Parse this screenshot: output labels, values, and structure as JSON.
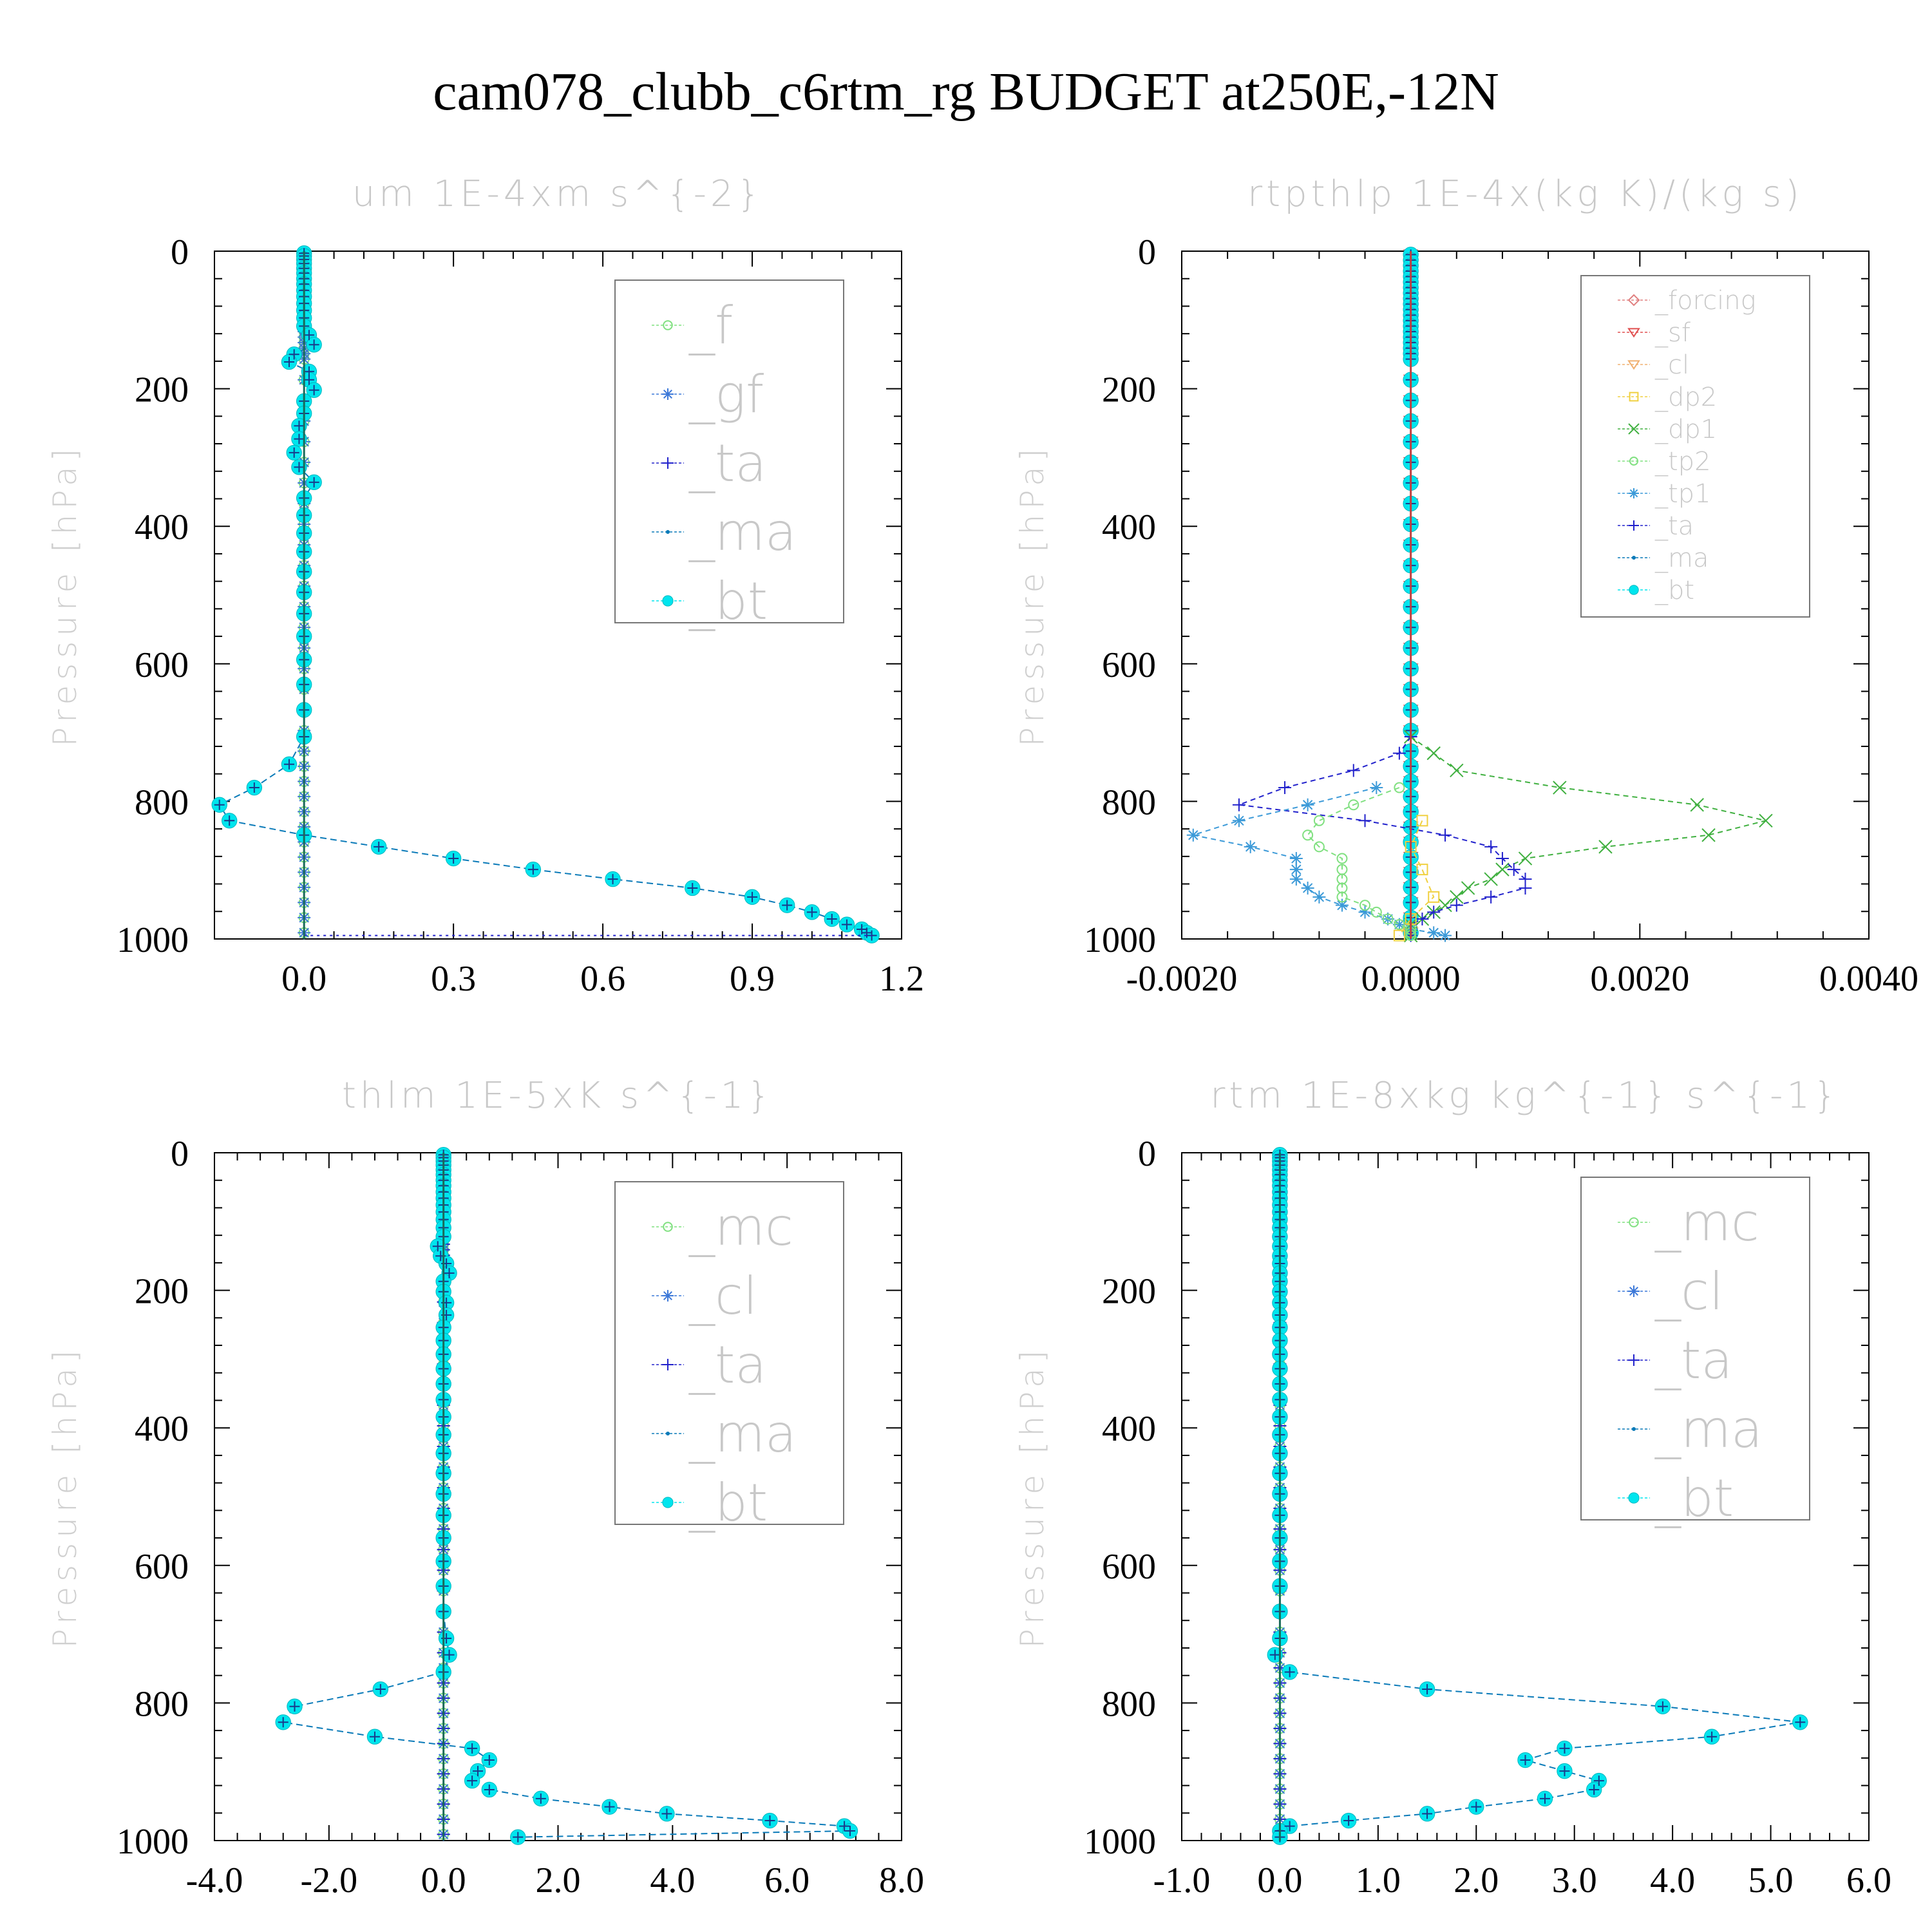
{
  "title": "cam078_clubb_c6rtm_rg  BUDGET at250E,-12N",
  "colors": {
    "_f": "#7fe07f",
    "_gf": "#3c78d8",
    "_ta": "#2222cc",
    "_ma": "#0a7ab8",
    "_bt": "#00e5ee",
    "_mc": "#7fe07f",
    "_cl": "#3c78d8",
    "_forcing": "#e08080",
    "_sf": "#e05050",
    "_cl_r": "#f0b070",
    "_dp2": "#f0d040",
    "_dp1": "#40b040",
    "_tp2": "#80e080",
    "_tp1": "#3c9ad8"
  },
  "chart_data": [
    {
      "type": "line",
      "title": "um  1E-4xm s^{-2}",
      "ylabel": "Pressure [hPa]",
      "xlim": [
        -0.18,
        1.2
      ],
      "ylim": [
        1000,
        0
      ],
      "xticks": [
        "0.0",
        "0.3",
        "0.6",
        "0.9",
        "1.2"
      ],
      "xtick_values": [
        0.0,
        0.3,
        0.6,
        0.9,
        1.2
      ],
      "yticks": [
        "0",
        "200",
        "400",
        "600",
        "800",
        "1000"
      ],
      "ytick_values": [
        0,
        200,
        400,
        600,
        800,
        1000
      ],
      "legend": {
        "position": "top-right",
        "entries": [
          "_f",
          "_gf",
          "_ta",
          "_ma",
          "_bt"
        ]
      },
      "series": [
        {
          "name": "_bt",
          "p": [
            3,
            7,
            12,
            18,
            25,
            32,
            40,
            48,
            57,
            66,
            76,
            86,
            97,
            109,
            122,
            136,
            150,
            161,
            175,
            187,
            202,
            218,
            236,
            254,
            273,
            293,
            314,
            336,
            359,
            384,
            410,
            437,
            466,
            496,
            527,
            560,
            594,
            630,
            667,
            706,
            746,
            780,
            805,
            828,
            849,
            866,
            883,
            899,
            913,
            926,
            939,
            951,
            961,
            971,
            979,
            986,
            991,
            995
          ],
          "x": [
            0,
            0,
            0,
            0,
            0,
            0,
            0,
            0,
            0,
            0,
            0,
            0,
            0,
            0,
            0.01,
            0.02,
            -0.02,
            -0.03,
            0.01,
            0.01,
            0.02,
            0.0,
            0.0,
            -0.01,
            -0.01,
            -0.02,
            -0.01,
            0.02,
            0.0,
            0.0,
            0.0,
            0.0,
            0.0,
            0.0,
            0.0,
            0.0,
            0.0,
            0.0,
            0.0,
            0.0,
            -0.03,
            -0.1,
            -0.17,
            -0.15,
            0.0,
            0.15,
            0.3,
            0.46,
            0.62,
            0.78,
            0.9,
            0.97,
            1.02,
            1.06,
            1.09,
            1.12,
            1.13,
            1.14
          ]
        },
        {
          "name": "_f",
          "const_x": 0.0
        },
        {
          "name": "_gf",
          "const_x": 0.0
        },
        {
          "name": "_ta",
          "tail": {
            "p": [
              995,
              995
            ],
            "x": [
              0.0,
              1.14
            ]
          }
        }
      ]
    },
    {
      "type": "line",
      "title": "rtpthlp  1E-4x(kg K)/(kg s)",
      "ylabel": "Pressure [hPa]",
      "xlim": [
        -0.002,
        0.004
      ],
      "ylim": [
        1000,
        0
      ],
      "xticks": [
        "-0.0020",
        "0.0000",
        "0.0020",
        "0.0040"
      ],
      "xtick_values": [
        -0.002,
        0.0,
        0.002,
        0.004
      ],
      "yticks": [
        "0",
        "200",
        "400",
        "600",
        "800",
        "1000"
      ],
      "ytick_values": [
        0,
        200,
        400,
        600,
        800,
        1000
      ],
      "legend": {
        "position": "top-right",
        "entries": [
          "_forcing",
          "_sf",
          "_cl",
          "_dp2",
          "_dp1",
          "_tp2",
          "_tp1",
          "_ta",
          "_ma",
          "_bt"
        ]
      },
      "series": [
        {
          "name": "_dp1",
          "p": [
            706,
            730,
            755,
            780,
            805,
            828,
            849,
            866,
            883,
            899,
            913,
            926,
            939,
            951,
            961,
            971,
            979,
            986,
            991,
            995
          ],
          "x": [
            0.0,
            0.0002,
            0.0004,
            0.0013,
            0.0025,
            0.0031,
            0.0026,
            0.0017,
            0.001,
            0.0008,
            0.0007,
            0.0005,
            0.0004,
            0.0003,
            0.0002,
            0.0001,
            0.0,
            0.0,
            0.0,
            0.0
          ]
        },
        {
          "name": "_ta",
          "p": [
            706,
            730,
            755,
            780,
            805,
            828,
            849,
            866,
            883,
            899,
            913,
            926,
            939,
            951,
            961,
            971,
            979,
            986,
            991,
            995
          ],
          "x": [
            0.0,
            -0.0001,
            -0.0005,
            -0.0011,
            -0.0015,
            -0.0004,
            0.0003,
            0.0007,
            0.0008,
            0.0009,
            0.001,
            0.001,
            0.0007,
            0.0004,
            0.0002,
            0.0001,
            0.0,
            0.0,
            0.0,
            0.0
          ]
        },
        {
          "name": "_tp1",
          "p": [
            780,
            805,
            828,
            849,
            866,
            883,
            899,
            913,
            926,
            939,
            951,
            961,
            971,
            979,
            986,
            991,
            995
          ],
          "x": [
            -0.0003,
            -0.0009,
            -0.0015,
            -0.0019,
            -0.0014,
            -0.001,
            -0.001,
            -0.001,
            -0.0009,
            -0.0008,
            -0.0006,
            -0.0004,
            -0.0002,
            -0.0001,
            0.0,
            0.0002,
            0.0003
          ]
        },
        {
          "name": "_tp2",
          "p": [
            780,
            805,
            828,
            849,
            866,
            883,
            899,
            913,
            926,
            939,
            951,
            961,
            971,
            979,
            986,
            991,
            995
          ],
          "x": [
            -0.0001,
            -0.0005,
            -0.0008,
            -0.0009,
            -0.0008,
            -0.0006,
            -0.0006,
            -0.0006,
            -0.0006,
            -0.0006,
            -0.0004,
            -0.0003,
            -0.0002,
            -0.0001,
            0.0,
            0.0,
            0.0
          ]
        },
        {
          "name": "_dp2",
          "p": [
            828,
            866,
            899,
            939,
            971,
            995
          ],
          "x": [
            0.0001,
            0.0,
            0.0001,
            0.0002,
            0.0,
            -0.0001
          ]
        },
        {
          "name": "_forcing",
          "const_x": 0.0
        },
        {
          "name": "_sf",
          "const_x": 0.0
        },
        {
          "name": "_cl",
          "const_x": 0.0
        },
        {
          "name": "_ma",
          "const_x": 0.0
        },
        {
          "name": "_bt",
          "const_x": 0.0
        }
      ]
    },
    {
      "type": "line",
      "title": "thlm  1E-5xK s^{-1}",
      "ylabel": "Pressure [hPa]",
      "xlim": [
        -4.0,
        8.0
      ],
      "ylim": [
        1000,
        0
      ],
      "xticks": [
        "-4.0",
        "-2.0",
        "0.0",
        "2.0",
        "4.0",
        "6.0",
        "8.0"
      ],
      "xtick_values": [
        -4,
        -2,
        0,
        2,
        4,
        6,
        8
      ],
      "yticks": [
        "0",
        "200",
        "400",
        "600",
        "800",
        "1000"
      ],
      "ytick_values": [
        0,
        200,
        400,
        600,
        800,
        1000
      ],
      "legend": {
        "position": "top-right",
        "entries": [
          "_mc",
          "_cl",
          "_ta",
          "_ma",
          "_bt"
        ]
      },
      "series": [
        {
          "name": "_bt",
          "p": [
            3,
            7,
            12,
            18,
            25,
            32,
            40,
            48,
            57,
            66,
            76,
            86,
            97,
            109,
            122,
            136,
            150,
            161,
            175,
            187,
            202,
            218,
            236,
            254,
            273,
            293,
            314,
            336,
            359,
            384,
            410,
            437,
            466,
            496,
            527,
            560,
            594,
            630,
            667,
            706,
            730,
            755,
            780,
            805,
            828,
            849,
            866,
            883,
            899,
            913,
            926,
            939,
            951,
            961,
            971,
            979,
            986,
            995
          ],
          "x": [
            0,
            0,
            0,
            0,
            0,
            0,
            0,
            0,
            0,
            0,
            0,
            0,
            0,
            0,
            0.0,
            -0.1,
            -0.05,
            0.05,
            0.1,
            0.0,
            0.0,
            0.05,
            0.05,
            0.0,
            0.0,
            0.0,
            0.0,
            0.0,
            0.0,
            0.0,
            0.0,
            0.0,
            0.0,
            0.0,
            0.0,
            0.0,
            0.0,
            0.0,
            0.0,
            0.05,
            0.1,
            0.0,
            -1.1,
            -2.6,
            -2.8,
            -1.2,
            0.5,
            0.8,
            0.6,
            0.5,
            0.8,
            1.7,
            2.9,
            3.9,
            5.7,
            7.0,
            7.1,
            1.3
          ]
        },
        {
          "name": "_mc",
          "const_x": 0.0
        },
        {
          "name": "_cl",
          "const_x": 0.0
        },
        {
          "name": "_ta",
          "const_x": 0.0
        }
      ]
    },
    {
      "type": "line",
      "title": "rtm  1E-8xkg kg^{-1} s^{-1}",
      "ylabel": "Pressure [hPa]",
      "xlim": [
        -1.0,
        6.0
      ],
      "ylim": [
        1000,
        0
      ],
      "xticks": [
        "-1.0",
        "0.0",
        "1.0",
        "2.0",
        "3.0",
        "4.0",
        "5.0",
        "6.0"
      ],
      "xtick_values": [
        -1,
        0,
        1,
        2,
        3,
        4,
        5,
        6
      ],
      "yticks": [
        "0",
        "200",
        "400",
        "600",
        "800",
        "1000"
      ],
      "ytick_values": [
        0,
        200,
        400,
        600,
        800,
        1000
      ],
      "legend": {
        "position": "top-right",
        "entries": [
          "_mc",
          "_cl",
          "_ta",
          "_ma",
          "_bt"
        ]
      },
      "series": [
        {
          "name": "_bt",
          "p": [
            3,
            7,
            12,
            18,
            25,
            32,
            40,
            48,
            57,
            66,
            76,
            86,
            97,
            109,
            122,
            136,
            150,
            161,
            175,
            187,
            202,
            218,
            236,
            254,
            273,
            293,
            314,
            336,
            359,
            384,
            410,
            437,
            466,
            496,
            527,
            560,
            594,
            630,
            667,
            706,
            730,
            755,
            780,
            805,
            828,
            849,
            866,
            883,
            899,
            913,
            926,
            939,
            951,
            961,
            971,
            979,
            986,
            995
          ],
          "x": [
            0,
            0,
            0,
            0,
            0,
            0,
            0,
            0,
            0,
            0,
            0,
            0,
            0,
            0,
            0,
            0,
            0,
            0,
            0,
            0,
            0,
            0,
            0,
            0,
            0,
            0,
            0,
            0,
            0,
            0,
            0,
            0,
            0,
            0,
            0,
            0,
            0,
            0,
            0,
            0,
            -0.05,
            0.1,
            1.5,
            3.9,
            5.3,
            4.4,
            2.9,
            2.5,
            2.9,
            3.25,
            3.2,
            2.7,
            2.0,
            1.5,
            0.7,
            0.1,
            0.0,
            0.0
          ]
        },
        {
          "name": "_mc",
          "const_x": 0.0
        },
        {
          "name": "_cl",
          "const_x": 0.0
        },
        {
          "name": "_ta",
          "const_x": 0.0
        }
      ]
    }
  ]
}
